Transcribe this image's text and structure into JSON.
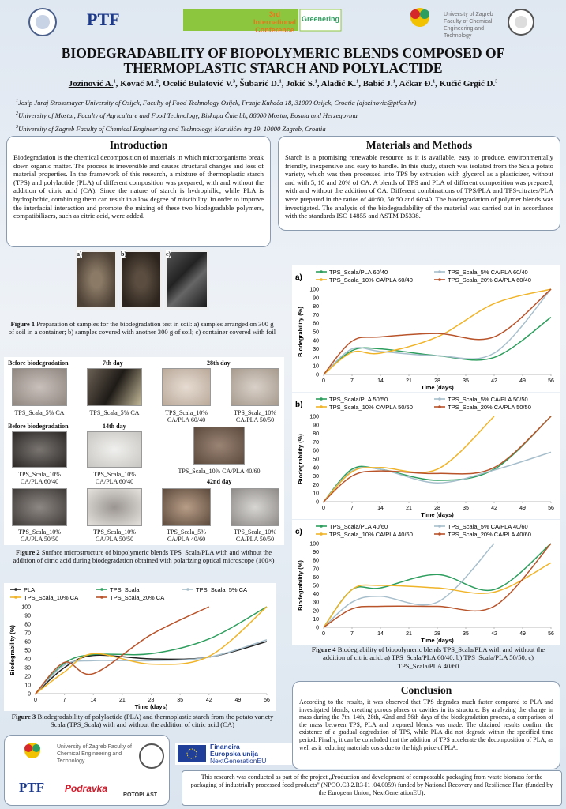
{
  "header": {
    "ptf": "PTF",
    "conference_line1": "3rd International",
    "conference_line2": "Conference",
    "conference_name": "Greenering",
    "university": "University of Zagreb Faculty of Chemical Engineering and Technology",
    "title": "BIODEGRADABILITY OF BIOPOLYMERIC BLENDS COMPOSED OF THERMOPLASTIC STARCH AND POLYLACTIDE",
    "authors": [
      {
        "name": "Jozinović A.",
        "sup": "1"
      },
      {
        "name": "Kovač M.",
        "sup": "2"
      },
      {
        "name": "Ocelić Bulatović V.",
        "sup": "3"
      },
      {
        "name": "Šubarić D.",
        "sup": "1"
      },
      {
        "name": "Jokić S.",
        "sup": "1"
      },
      {
        "name": "Aladić K.",
        "sup": "1"
      },
      {
        "name": "Babić J.",
        "sup": "1"
      },
      {
        "name": "Ačkar Đ.",
        "sup": "1"
      },
      {
        "name": "Kučić Grgić D.",
        "sup": "3"
      }
    ],
    "affiliations": [
      {
        "sup": "1",
        "text": "Josip Juraj Strossmayer University of Osijek, Faculty of Food Technology Osijek, Franje Kuhača 18, 31000 Osijek, Croatia (ajozinovic@ptfos.hr)"
      },
      {
        "sup": "2",
        "text": "University of Mostar, Faculty of Agriculture and Food Technology, Biskupa Čule bb, 88000 Mostar, Bosnia and Herzegovina"
      },
      {
        "sup": "3",
        "text": "University of Zagreb Faculty of Chemical Engineering and Technology, Marulićev trg 19, 10000 Zagreb, Croatia"
      }
    ]
  },
  "introduction": {
    "heading": "Introduction",
    "text": "Biodegradation is the chemical decomposition of materials in which microorganisms break down organic matter. The process is irreversible and causes structural changes and loss of material properties. In the framework of this research, a mixture of thermoplastic starch (TPS) and polylactide (PLA) of different composition was prepared, with and without the addition of citric acid (CA). Since the nature of starch is hydrophilic, while PLA is hydrophobic, combining them can result in a low degree of miscibility. In order to improve the interfacial interaction and promote the mixing of these two biodegradable polymers, compatibilizers, such as citric acid, were added."
  },
  "methods": {
    "heading": "Materials and Methods",
    "text": "Starch is a promising renewable resource as it is available, easy to produce, environmentally friendly, inexpensive and easy to handle. In this study, starch was isolated from the Scala potato variety, which was then processed into TPS by extrusion with glycerol as a plasticizer, without and with 5, 10 and 20% of CA. A blends of TPS and PLA of different composition was prepared, with and without the addition of CA. Different combinations of TPS/PLA and TPS-citrates/PLA were prepared in the ratios of 40:60, 50:50 and 60:40. The biodegradation of polymer blends was investigated. The analysis of the biodegradability of the material was carried out in accordance with the standards ISO 14855 and ASTM D5338."
  },
  "figure1": {
    "panels": [
      "a)",
      "b)",
      "c)"
    ],
    "label": "Figure 1",
    "caption": "Preparation of samples for the biodegradation test in soil: a) samples arranged on 300 g of soil in a container; b) samples covered with another 300 g of soil; c) container covered with foil"
  },
  "figure2": {
    "headers": [
      "Before biodegradation",
      "7th day",
      "28th day",
      "Before biodegradation",
      "14th day",
      "42nd day"
    ],
    "cells": [
      "TPS_Scala_5% CA",
      "TPS_Scala_5% CA",
      "TPS_Scala_10% CA/PLA 60/40",
      "TPS_Scala_10% CA/PLA 50/50",
      "TPS_Scala_10% CA/PLA 60/40",
      "TPS_Scala_10% CA/PLA 60/40",
      "TPS_Scala_10% CA/PLA 40/60",
      "TPS_Scala_10% CA/PLA 50/50",
      "TPS_Scala_10% CA/PLA 50/50",
      "TPS_Scala_5% CA/PLA 40/60",
      "TPS_Scala_10% CA/PLA 50/50"
    ],
    "label": "Figure 2",
    "caption": "Surface microstructure of biopolymeric blends TPS_Scala/PLA with and without the addition of citric acid during biodegradation obtained with polarizing optical microscope (100×)"
  },
  "figure3": {
    "label": "Figure 3",
    "caption": "Biodegradability of polylactide (PLA) and thermoplastic starch from the potato variety Scala (TPS_Scala) with and without the addition of citric acid (CA)"
  },
  "figure4": {
    "label": "Figure 4",
    "caption": "Biodegrability of biopolymeric blends TPS_Scala/PLA with and without the addition of citric acid: a) TPS_Scala/PLA 60/40; b) TPS_Scala/PLA 50/50; c) TPS_Scala/PLA 40/60"
  },
  "conclusion": {
    "heading": "Conclusion",
    "text": "According to the results, it was observed that TPS degrades much faster compared to PLA and investigated blends, creating porous places or cavities in its structure. By analyzing the change in mass during the 7th, 14th, 28th, 42nd and 56th days of the biodegradation process, a comparison of the mass between TPS, PLA and prepared blends was made. The obtained results confirm the existence of a gradual degradation of TPS, while PLA did not degrade within the specified time period. Finally, it can be concluded that the addition of TPS accelerate the decomposition of PLA, as well as it reducing materials costs due to the high price of PLA."
  },
  "footer": {
    "university": "University of Zagreb Faculty of Chemical Engineering and Technology",
    "ptf": "PTF",
    "podravka": "Podravka",
    "rotoplast": "ROTOPLAST",
    "eu_line1": "Financira",
    "eu_line2": "Europska unija",
    "eu_line3": "NextGenerationEU",
    "funding": "This research was conducted as part of the project „Production and development of compostable packaging from waste biomass for the packaging of industrially processed food products\" (NPOO.C3.2.R3-I1 .04.0059) funded by National Recovery and Resilience Plan (funded by the European Union, NextGenerationEU)."
  },
  "chart_data": [
    {
      "type": "line",
      "xlabel": "Time (days)",
      "ylabel": "Biodegrability (%)",
      "x": [
        0,
        7,
        14,
        28,
        42,
        56
      ],
      "xlim": [
        0,
        56
      ],
      "ylim": [
        0,
        100
      ],
      "xticks": [
        0,
        7,
        14,
        21,
        28,
        35,
        42,
        49,
        56
      ],
      "yticks": [
        0,
        10,
        20,
        30,
        40,
        50,
        60,
        70,
        80,
        90,
        100
      ],
      "series": [
        {
          "name": "PLA",
          "color": "#222222",
          "values": [
            0,
            30,
            44,
            40,
            42,
            60
          ]
        },
        {
          "name": "TPS_Scala",
          "color": "#2e9e5e",
          "values": [
            0,
            35,
            45,
            46,
            63,
            100
          ]
        },
        {
          "name": "TPS_Scala_5% CA",
          "color": "#a7bfcc",
          "values": [
            0,
            33,
            38,
            38,
            42,
            62
          ]
        },
        {
          "name": "TPS_Scala_10% CA",
          "color": "#f0b429",
          "values": [
            0,
            25,
            46,
            34,
            43,
            100
          ]
        },
        {
          "name": "TPS_Scala_20% CA",
          "color": "#b8532a",
          "values": [
            0,
            36,
            23,
            68,
            100,
            null
          ]
        }
      ]
    },
    {
      "type": "line",
      "panel": "a)",
      "xlabel": "Time (days)",
      "ylabel": "Biodegrability (%)",
      "x": [
        0,
        7,
        14,
        28,
        42,
        56
      ],
      "xlim": [
        0,
        56
      ],
      "ylim": [
        0,
        100
      ],
      "xticks": [
        0,
        7,
        14,
        21,
        28,
        35,
        42,
        49,
        56
      ],
      "yticks": [
        0,
        10,
        20,
        30,
        40,
        50,
        60,
        70,
        80,
        90,
        100
      ],
      "series": [
        {
          "name": "TPS_Scala/PLA 60/40",
          "color": "#2e9e5e",
          "values": [
            0,
            28,
            30,
            22,
            20,
            67
          ]
        },
        {
          "name": "TPS_Scala_5% CA/PLA 60/40",
          "color": "#a7bfcc",
          "values": [
            0,
            30,
            27,
            22,
            25,
            100
          ]
        },
        {
          "name": "TPS_Scala_10% CA/PLA 60/40",
          "color": "#f0b429",
          "values": [
            0,
            26,
            25,
            44,
            83,
            100
          ]
        },
        {
          "name": "TPS_Scala_20% CA/PLA 60/40",
          "color": "#b8532a",
          "values": [
            0,
            39,
            44,
            48,
            44,
            100
          ]
        }
      ]
    },
    {
      "type": "line",
      "panel": "b)",
      "xlabel": "Time (days)",
      "ylabel": "Biodegrability (%)",
      "x": [
        0,
        7,
        14,
        28,
        42,
        56
      ],
      "xlim": [
        0,
        56
      ],
      "ylim": [
        0,
        100
      ],
      "xticks": [
        0,
        7,
        14,
        21,
        28,
        35,
        42,
        49,
        56
      ],
      "yticks": [
        0,
        10,
        20,
        30,
        40,
        50,
        60,
        70,
        80,
        90,
        100
      ],
      "series": [
        {
          "name": "TPS_Scala/PLA 50/50",
          "color": "#2e9e5e",
          "values": [
            0,
            38,
            38,
            25,
            38,
            100
          ]
        },
        {
          "name": "TPS_Scala_5% CA/PLA 50/50",
          "color": "#a7bfcc",
          "values": [
            0,
            36,
            38,
            22,
            37,
            58
          ]
        },
        {
          "name": "TPS_Scala_10% CA/PLA 50/50",
          "color": "#f0b429",
          "values": [
            0,
            35,
            40,
            38,
            100,
            null
          ]
        },
        {
          "name": "TPS_Scala_20% CA/PLA 50/50",
          "color": "#b8532a",
          "values": [
            0,
            30,
            36,
            33,
            40,
            100
          ]
        }
      ]
    },
    {
      "type": "line",
      "panel": "c)",
      "xlabel": "Time (days)",
      "ylabel": "Biodegrability (%)",
      "x": [
        0,
        7,
        14,
        28,
        42,
        56
      ],
      "xlim": [
        0,
        56
      ],
      "ylim": [
        0,
        100
      ],
      "xticks": [
        0,
        7,
        14,
        21,
        28,
        35,
        42,
        49,
        56
      ],
      "yticks": [
        0,
        10,
        20,
        30,
        40,
        50,
        60,
        70,
        80,
        90,
        100
      ],
      "series": [
        {
          "name": "TPS_Scala/PLA 40/60",
          "color": "#2e9e5e",
          "values": [
            0,
            45,
            47,
            63,
            45,
            100
          ]
        },
        {
          "name": "TPS_Scala_5% CA/PLA 40/60",
          "color": "#a7bfcc",
          "values": [
            0,
            30,
            37,
            30,
            100,
            null
          ]
        },
        {
          "name": "TPS_Scala_10% CA/PLA 40/60",
          "color": "#f0b429",
          "values": [
            0,
            45,
            50,
            47,
            42,
            77
          ]
        },
        {
          "name": "TPS_Scala_20% CA/PLA 40/60",
          "color": "#b8532a",
          "values": [
            0,
            22,
            25,
            25,
            25,
            100
          ]
        }
      ]
    }
  ]
}
